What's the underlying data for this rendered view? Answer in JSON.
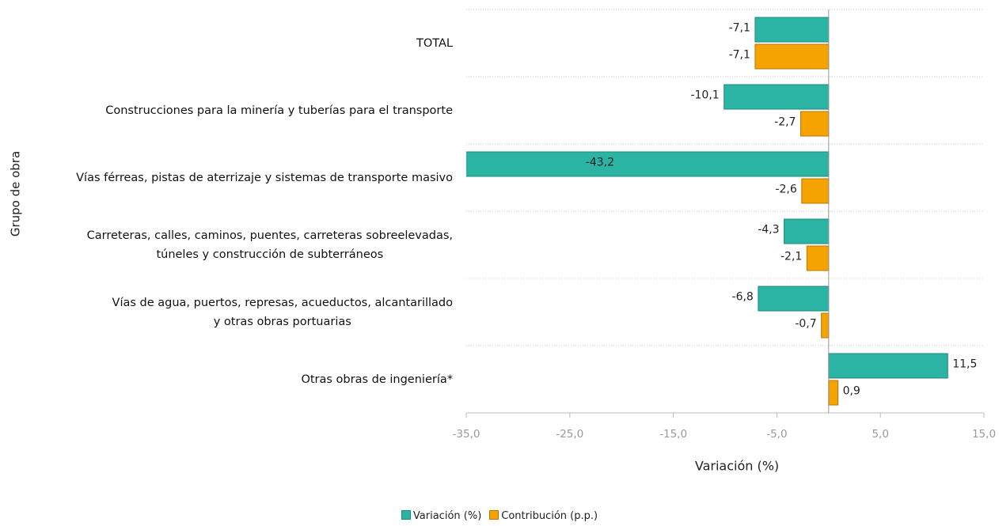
{
  "chart_data": {
    "type": "hbar",
    "y_axis_title": "Grupo de obra",
    "x_axis_title": "Variación (%)",
    "categories": [
      "TOTAL",
      "Construcciones para la minería y tuberías para el transporte",
      "Vías férreas, pistas de aterrizaje y sistemas de transporte masivo",
      "Carreteras, calles, caminos, puentes, carreteras sobreelevadas,\ntúneles y construcción de subterráneos",
      "Vías de agua, puertos, represas, acueductos, alcantarillado\ny otras obras portuarias",
      "Otras obras de ingeniería*"
    ],
    "series": [
      {
        "name": "Variación (%)",
        "color": "#2bb3a3",
        "border": "#1f8a7c",
        "values": [
          -7.1,
          -10.1,
          -43.2,
          -4.3,
          -6.8,
          11.5
        ],
        "value_labels": [
          "-7,1",
          "-10,1",
          "-43,2",
          "-4,3",
          "-6,8",
          "11,5"
        ]
      },
      {
        "name": "Contribución (p.p.)",
        "color": "#f5a300",
        "border": "#b97700",
        "values": [
          -7.1,
          -2.7,
          -2.6,
          -2.1,
          -0.7,
          0.9
        ],
        "value_labels": [
          "-7,1",
          "-2,7",
          "-2,6",
          "-2,1",
          "-0,7",
          "0,9"
        ]
      }
    ],
    "xlim": [
      -35,
      15
    ],
    "xticks": [
      {
        "value": -35,
        "label": "-35,0"
      },
      {
        "value": -25,
        "label": "-25,0"
      },
      {
        "value": -15,
        "label": "-15,0"
      },
      {
        "value": -5,
        "label": "-5,0"
      },
      {
        "value": 5,
        "label": "5,0"
      },
      {
        "value": 15,
        "label": "15,0"
      }
    ],
    "grid": true,
    "legend": "bottom"
  }
}
